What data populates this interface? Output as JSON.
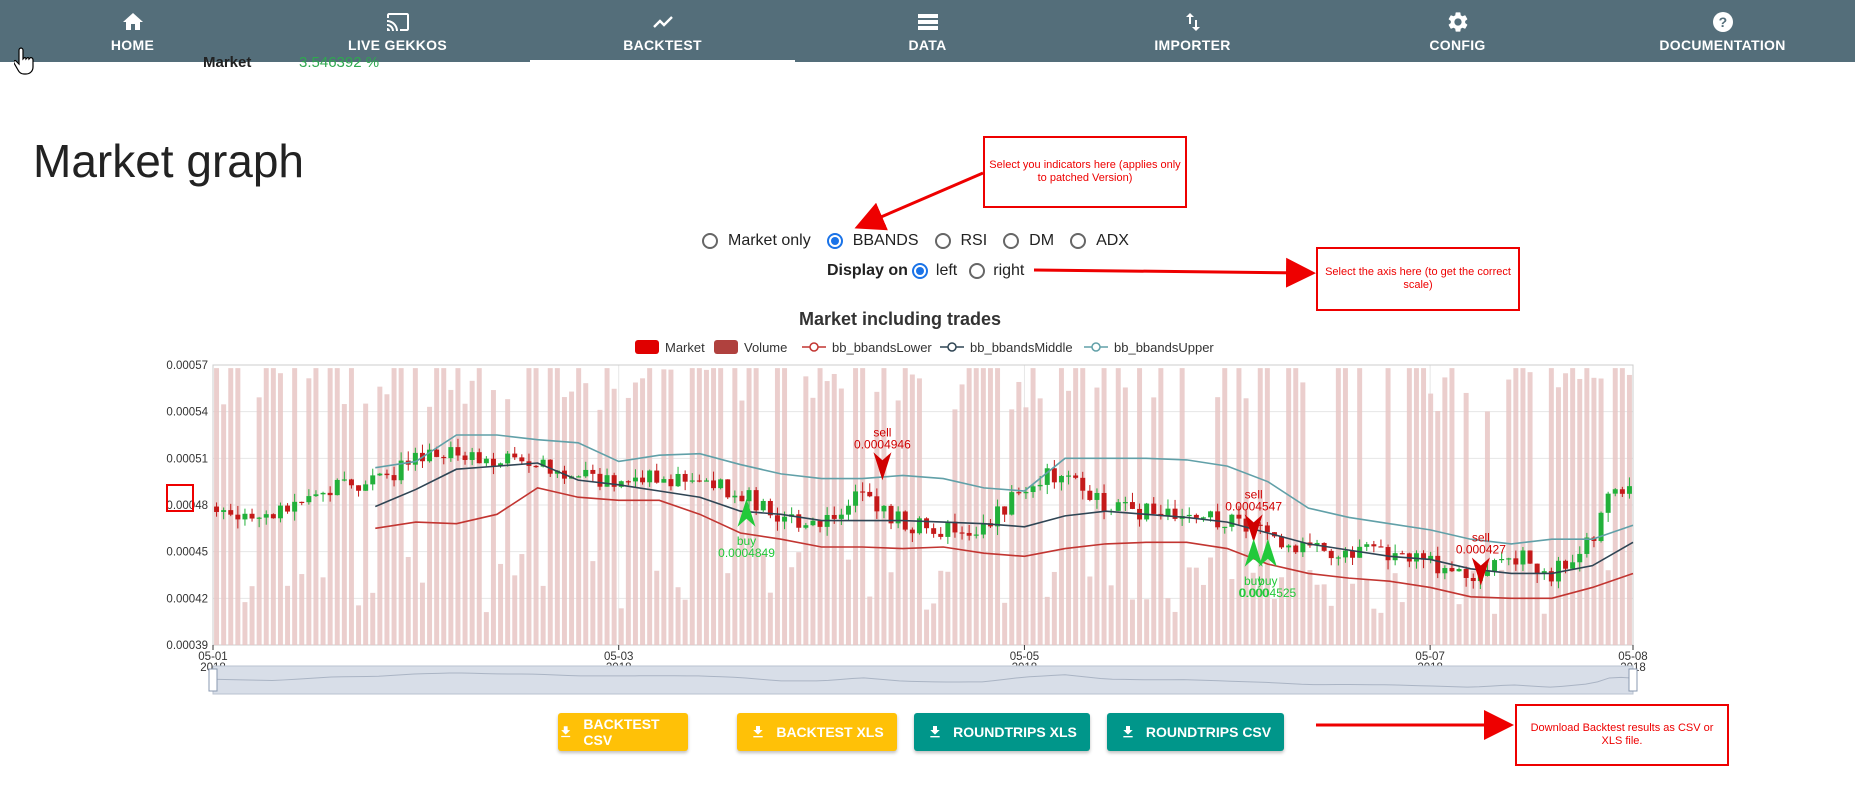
{
  "nav": {
    "items": [
      {
        "label": "HOME",
        "icon": "home-icon"
      },
      {
        "label": "LIVE GEKKOS",
        "icon": "cast-icon"
      },
      {
        "label": "BACKTEST",
        "icon": "trending-icon",
        "active": true
      },
      {
        "label": "DATA",
        "icon": "storage-icon"
      },
      {
        "label": "IMPORTER",
        "icon": "import-export-icon"
      },
      {
        "label": "CONFIG",
        "icon": "gear-icon"
      },
      {
        "label": "DOCUMENTATION",
        "icon": "help-icon"
      }
    ]
  },
  "result_row": {
    "label": "Market",
    "value": "3.546392 %"
  },
  "page_title": "Market graph",
  "indicators": {
    "options": [
      "Market only",
      "BBANDS",
      "RSI",
      "DM",
      "ADX"
    ],
    "selected": "BBANDS"
  },
  "display_axis": {
    "label": "Display on",
    "options": [
      "left",
      "right"
    ],
    "selected": "left"
  },
  "chart_data": {
    "type": "candlestick",
    "title": "Market including trades",
    "legend": [
      "Market",
      "Volume",
      "bb_bbandsLower",
      "bb_bbandsMiddle",
      "bb_bbandsUpper"
    ],
    "legend_placement": "top-center",
    "ylim": [
      0.00039,
      0.00057
    ],
    "y_ticks": [
      "0.00057",
      "0.00054",
      "0.00051",
      "0.00048",
      "0.00045",
      "0.00042",
      "0.00039"
    ],
    "x_ticks": [
      {
        "date": "05-01",
        "year": "2018"
      },
      {
        "date": "05-03",
        "year": "2018"
      },
      {
        "date": "05-05",
        "year": "2018"
      },
      {
        "date": "05-07",
        "year": "2018"
      },
      {
        "date": "05-08",
        "year": "2018"
      }
    ],
    "x_tick_days": [
      1,
      3,
      5,
      7,
      8
    ],
    "xlim_days": [
      1,
      8
    ],
    "grid": true,
    "has_zoom_slider": true,
    "bbands_upper": [
      [
        1.8,
        0.000504
      ],
      [
        2.0,
        0.000508
      ],
      [
        2.2,
        0.000525
      ],
      [
        2.4,
        0.000525
      ],
      [
        2.6,
        0.000522
      ],
      [
        2.8,
        0.00052
      ],
      [
        3.0,
        0.000508
      ],
      [
        3.2,
        0.000512
      ],
      [
        3.4,
        0.000513
      ],
      [
        3.6,
        0.000506
      ],
      [
        3.8,
        0.0005
      ],
      [
        4.0,
        0.000497
      ],
      [
        4.2,
        0.000497
      ],
      [
        4.4,
        0.000499
      ],
      [
        4.6,
        0.000497
      ],
      [
        4.8,
        0.000491
      ],
      [
        5.0,
        0.000489
      ],
      [
        5.2,
        0.00051
      ],
      [
        5.4,
        0.00051
      ],
      [
        5.6,
        0.00051
      ],
      [
        5.8,
        0.000509
      ],
      [
        6.0,
        0.000505
      ],
      [
        6.2,
        0.000495
      ],
      [
        6.4,
        0.000478
      ],
      [
        6.6,
        0.000472
      ],
      [
        6.8,
        0.000468
      ],
      [
        7.0,
        0.000464
      ],
      [
        7.2,
        0.000458
      ],
      [
        7.4,
        0.000455
      ],
      [
        7.6,
        0.000458
      ],
      [
        7.8,
        0.000458
      ],
      [
        8.0,
        0.000467
      ]
    ],
    "bbands_middle": [
      [
        1.8,
        0.000479
      ],
      [
        2.0,
        0.00049
      ],
      [
        2.2,
        0.000503
      ],
      [
        2.4,
        0.000505
      ],
      [
        2.6,
        0.000507
      ],
      [
        2.8,
        0.000496
      ],
      [
        3.0,
        0.000493
      ],
      [
        3.2,
        0.000489
      ],
      [
        3.4,
        0.000485
      ],
      [
        3.6,
        0.000476
      ],
      [
        3.8,
        0.000474
      ],
      [
        4.0,
        0.00047
      ],
      [
        4.2,
        0.00047
      ],
      [
        4.4,
        0.00047
      ],
      [
        4.6,
        0.000469
      ],
      [
        4.8,
        0.000468
      ],
      [
        5.0,
        0.000466
      ],
      [
        5.2,
        0.000473
      ],
      [
        5.4,
        0.000476
      ],
      [
        5.6,
        0.000474
      ],
      [
        5.8,
        0.000472
      ],
      [
        6.0,
        0.000469
      ],
      [
        6.2,
        0.000462
      ],
      [
        6.4,
        0.000455
      ],
      [
        6.6,
        0.000451
      ],
      [
        6.8,
        0.000447
      ],
      [
        7.0,
        0.000445
      ],
      [
        7.2,
        0.000439
      ],
      [
        7.4,
        0.000436
      ],
      [
        7.6,
        0.000436
      ],
      [
        7.8,
        0.000441
      ],
      [
        8.0,
        0.000456
      ]
    ],
    "bbands_lower": [
      [
        1.8,
        0.000465
      ],
      [
        2.0,
        0.000469
      ],
      [
        2.2,
        0.000468
      ],
      [
        2.4,
        0.000474
      ],
      [
        2.6,
        0.000491
      ],
      [
        2.8,
        0.000485
      ],
      [
        3.0,
        0.000483
      ],
      [
        3.2,
        0.000483
      ],
      [
        3.4,
        0.000474
      ],
      [
        3.6,
        0.000462
      ],
      [
        3.8,
        0.000458
      ],
      [
        4.0,
        0.000453
      ],
      [
        4.2,
        0.000453
      ],
      [
        4.4,
        0.000452
      ],
      [
        4.6,
        0.000453
      ],
      [
        4.8,
        0.000449
      ],
      [
        5.0,
        0.000447
      ],
      [
        5.2,
        0.000452
      ],
      [
        5.4,
        0.000455
      ],
      [
        5.6,
        0.000456
      ],
      [
        5.8,
        0.000456
      ],
      [
        6.0,
        0.000452
      ],
      [
        6.2,
        0.000442
      ],
      [
        6.4,
        0.000436
      ],
      [
        6.6,
        0.000433
      ],
      [
        6.8,
        0.000431
      ],
      [
        7.0,
        0.000427
      ],
      [
        7.2,
        0.000421
      ],
      [
        7.4,
        0.00042
      ],
      [
        7.6,
        0.00042
      ],
      [
        7.8,
        0.000427
      ],
      [
        8.0,
        0.000436
      ]
    ],
    "close_path": [
      [
        1.0,
        0.000479
      ],
      [
        1.3,
        0.000472
      ],
      [
        1.6,
        0.000492
      ],
      [
        1.8,
        0.000494
      ],
      [
        2.0,
        0.000508
      ],
      [
        2.2,
        0.000513
      ],
      [
        2.4,
        0.000508
      ],
      [
        2.6,
        0.000506
      ],
      [
        2.8,
        0.000497
      ],
      [
        3.0,
        0.000497
      ],
      [
        3.2,
        0.000498
      ],
      [
        3.4,
        0.000497
      ],
      [
        3.6,
        0.000488
      ],
      [
        3.8,
        0.00047
      ],
      [
        4.0,
        0.00047
      ],
      [
        4.2,
        0.000487
      ],
      [
        4.4,
        0.000469
      ],
      [
        4.6,
        0.000464
      ],
      [
        4.8,
        0.000465
      ],
      [
        5.0,
        0.000491
      ],
      [
        5.2,
        0.000503
      ],
      [
        5.4,
        0.00048
      ],
      [
        5.6,
        0.000476
      ],
      [
        5.8,
        0.000477
      ],
      [
        6.0,
        0.000469
      ],
      [
        6.2,
        0.000462
      ],
      [
        6.4,
        0.00045
      ],
      [
        6.6,
        0.000451
      ],
      [
        6.8,
        0.000449
      ],
      [
        7.0,
        0.000443
      ],
      [
        7.2,
        0.000436
      ],
      [
        7.4,
        0.000449
      ],
      [
        7.6,
        0.000436
      ],
      [
        7.8,
        0.000456
      ],
      [
        7.9,
        0.000492
      ],
      [
        8.0,
        0.000485
      ]
    ],
    "trades": [
      {
        "action": "sell",
        "price": "0.0004946",
        "day": 4.3
      },
      {
        "action": "buy",
        "price": "0.0004849",
        "day": 3.63
      },
      {
        "action": "sell",
        "price": "0.0004547",
        "day": 6.13
      },
      {
        "action": "buy",
        "price": "0.000",
        "day": 6.13
      },
      {
        "action": "buy",
        "price": "0.0004525",
        "day": 6.2
      },
      {
        "action": "sell",
        "price": "0.000427",
        "day": 7.25
      }
    ]
  },
  "buttons": [
    {
      "label": "BACKTEST CSV",
      "color": "#ffc107"
    },
    {
      "label": "BACKTEST XLS",
      "color": "#ffc107"
    },
    {
      "label": "ROUNDTRIPS XLS",
      "color": "#00968a"
    },
    {
      "label": "ROUNDTRIPS CSV",
      "color": "#00968a"
    }
  ],
  "annotations": {
    "indicators_note": "Select you indicators here (applies only to patched Version)",
    "axis_note": "Select the axis here (to get the correct scale)",
    "download_note": "Download Backtest results as CSV or XLS file."
  }
}
